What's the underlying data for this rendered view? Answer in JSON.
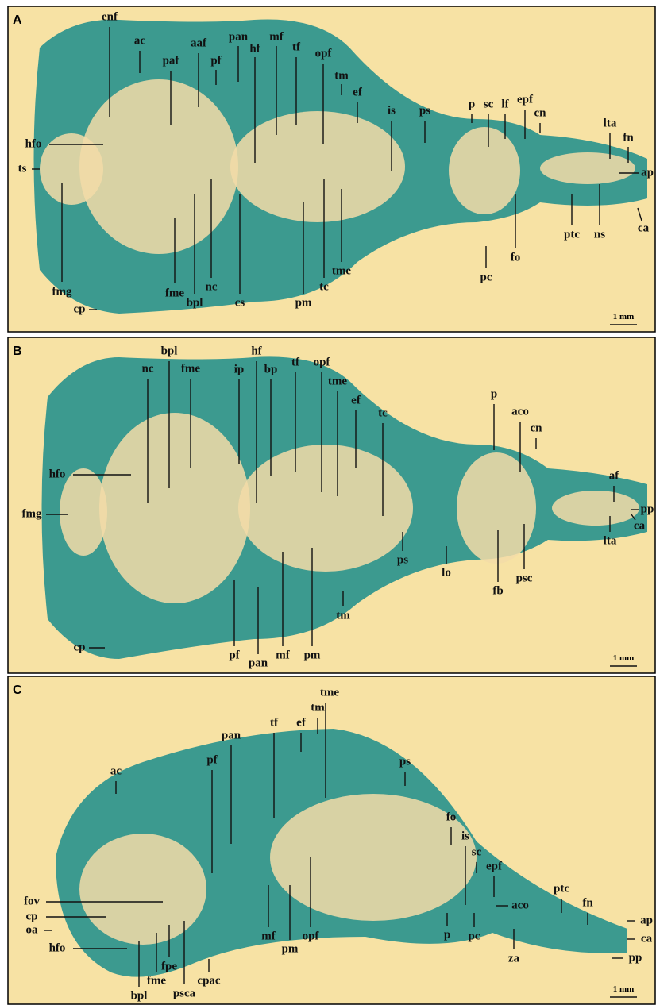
{
  "panels": [
    {
      "letter": "A",
      "scale_bar": "1 mm",
      "labels": [
        "enf",
        "ac",
        "paf",
        "aaf",
        "pf",
        "pan",
        "hf",
        "mf",
        "tf",
        "opf",
        "tm",
        "ef",
        "is",
        "ps",
        "p",
        "sc",
        "lf",
        "epf",
        "cn",
        "lta",
        "fn",
        "ap",
        "hfo",
        "ts",
        "fmg",
        "cp",
        "fme",
        "nc",
        "bpl",
        "cs",
        "pm",
        "tc",
        "tme",
        "pc",
        "fo",
        "ptc",
        "ns",
        "ca"
      ]
    },
    {
      "letter": "B",
      "scale_bar": "1 mm",
      "labels": [
        "nc",
        "bpl",
        "fme",
        "ip",
        "hf",
        "bp",
        "tf",
        "opf",
        "tme",
        "ef",
        "tc",
        "p",
        "aco",
        "cn",
        "af",
        "pp",
        "hfo",
        "fmg",
        "ca",
        "lta",
        "ps",
        "lo",
        "fb",
        "psc",
        "tm",
        "cp",
        "pf",
        "pan",
        "mf",
        "pm"
      ]
    },
    {
      "letter": "C",
      "scale_bar": "1 mm",
      "labels": [
        "tme",
        "tm",
        "ef",
        "tf",
        "pan",
        "pf",
        "ac",
        "ps",
        "fo",
        "is",
        "sc",
        "epf",
        "aco",
        "ptc",
        "fn",
        "ap",
        "ca",
        "pp",
        "fov",
        "cp",
        "oa",
        "hfo",
        "bpl",
        "fme",
        "fpe",
        "psca",
        "cpac",
        "mf",
        "pm",
        "opf",
        "p",
        "pc",
        "za"
      ]
    }
  ]
}
